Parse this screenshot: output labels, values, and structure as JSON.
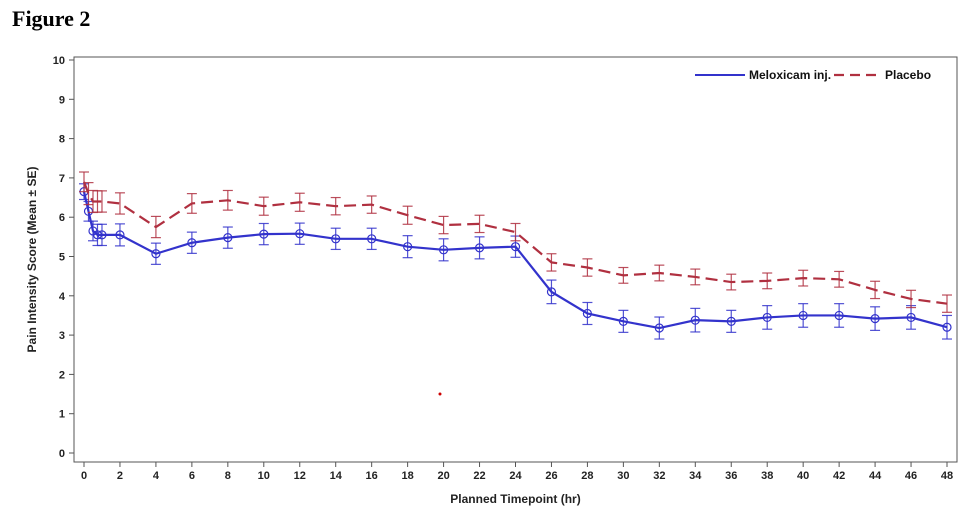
{
  "figure_title": "Figure 2",
  "chart_data": {
    "type": "line",
    "title": "",
    "xlabel": "Planned Timepoint (hr)",
    "ylabel": "Pain Intensity Score (Mean ± SE)",
    "xlim": [
      0,
      48
    ],
    "ylim": [
      0,
      10
    ],
    "xticks": [
      0,
      2,
      4,
      6,
      8,
      10,
      12,
      14,
      16,
      18,
      20,
      22,
      24,
      26,
      28,
      30,
      32,
      34,
      36,
      38,
      40,
      42,
      44,
      46,
      48
    ],
    "yticks": [
      0,
      1,
      2,
      3,
      4,
      5,
      6,
      7,
      8,
      9,
      10
    ],
    "grid": false,
    "legend_placement": "top-right",
    "x": [
      0,
      0.25,
      0.5,
      0.75,
      1,
      2,
      4,
      6,
      8,
      10,
      12,
      14,
      16,
      18,
      20,
      22,
      24,
      26,
      28,
      30,
      32,
      34,
      36,
      38,
      40,
      42,
      44,
      46,
      48
    ],
    "series": [
      {
        "name": "Meloxicam inj.",
        "color": "#3333cc",
        "style": "solid",
        "marker": "circle",
        "values": [
          6.65,
          6.15,
          5.65,
          5.55,
          5.55,
          5.55,
          5.07,
          5.35,
          5.48,
          5.57,
          5.58,
          5.45,
          5.45,
          5.25,
          5.17,
          5.22,
          5.25,
          4.1,
          3.55,
          3.35,
          3.18,
          3.38,
          3.35,
          3.45,
          3.5,
          3.5,
          3.42,
          3.45,
          3.2
        ],
        "se": [
          0.2,
          0.25,
          0.25,
          0.27,
          0.27,
          0.28,
          0.27,
          0.27,
          0.27,
          0.27,
          0.27,
          0.27,
          0.27,
          0.28,
          0.28,
          0.28,
          0.27,
          0.3,
          0.28,
          0.28,
          0.28,
          0.3,
          0.28,
          0.3,
          0.3,
          0.3,
          0.3,
          0.3,
          0.3
        ]
      },
      {
        "name": "Placebo",
        "color": "#b03040",
        "style": "dashed",
        "marker": "none",
        "values": [
          6.9,
          6.6,
          6.4,
          6.4,
          6.4,
          6.35,
          5.75,
          6.35,
          6.43,
          6.28,
          6.38,
          6.28,
          6.32,
          6.05,
          5.8,
          5.83,
          5.62,
          4.85,
          4.72,
          4.52,
          4.58,
          4.48,
          4.35,
          4.38,
          4.45,
          4.42,
          4.15,
          3.92,
          3.8
        ],
        "se": [
          0.25,
          0.28,
          0.28,
          0.27,
          0.27,
          0.27,
          0.27,
          0.25,
          0.25,
          0.23,
          0.23,
          0.22,
          0.22,
          0.23,
          0.22,
          0.22,
          0.22,
          0.22,
          0.22,
          0.2,
          0.2,
          0.2,
          0.2,
          0.2,
          0.2,
          0.2,
          0.22,
          0.22,
          0.22
        ]
      }
    ],
    "stray_point": {
      "x": 19.8,
      "y": 1.5,
      "color": "#cc0000"
    }
  }
}
